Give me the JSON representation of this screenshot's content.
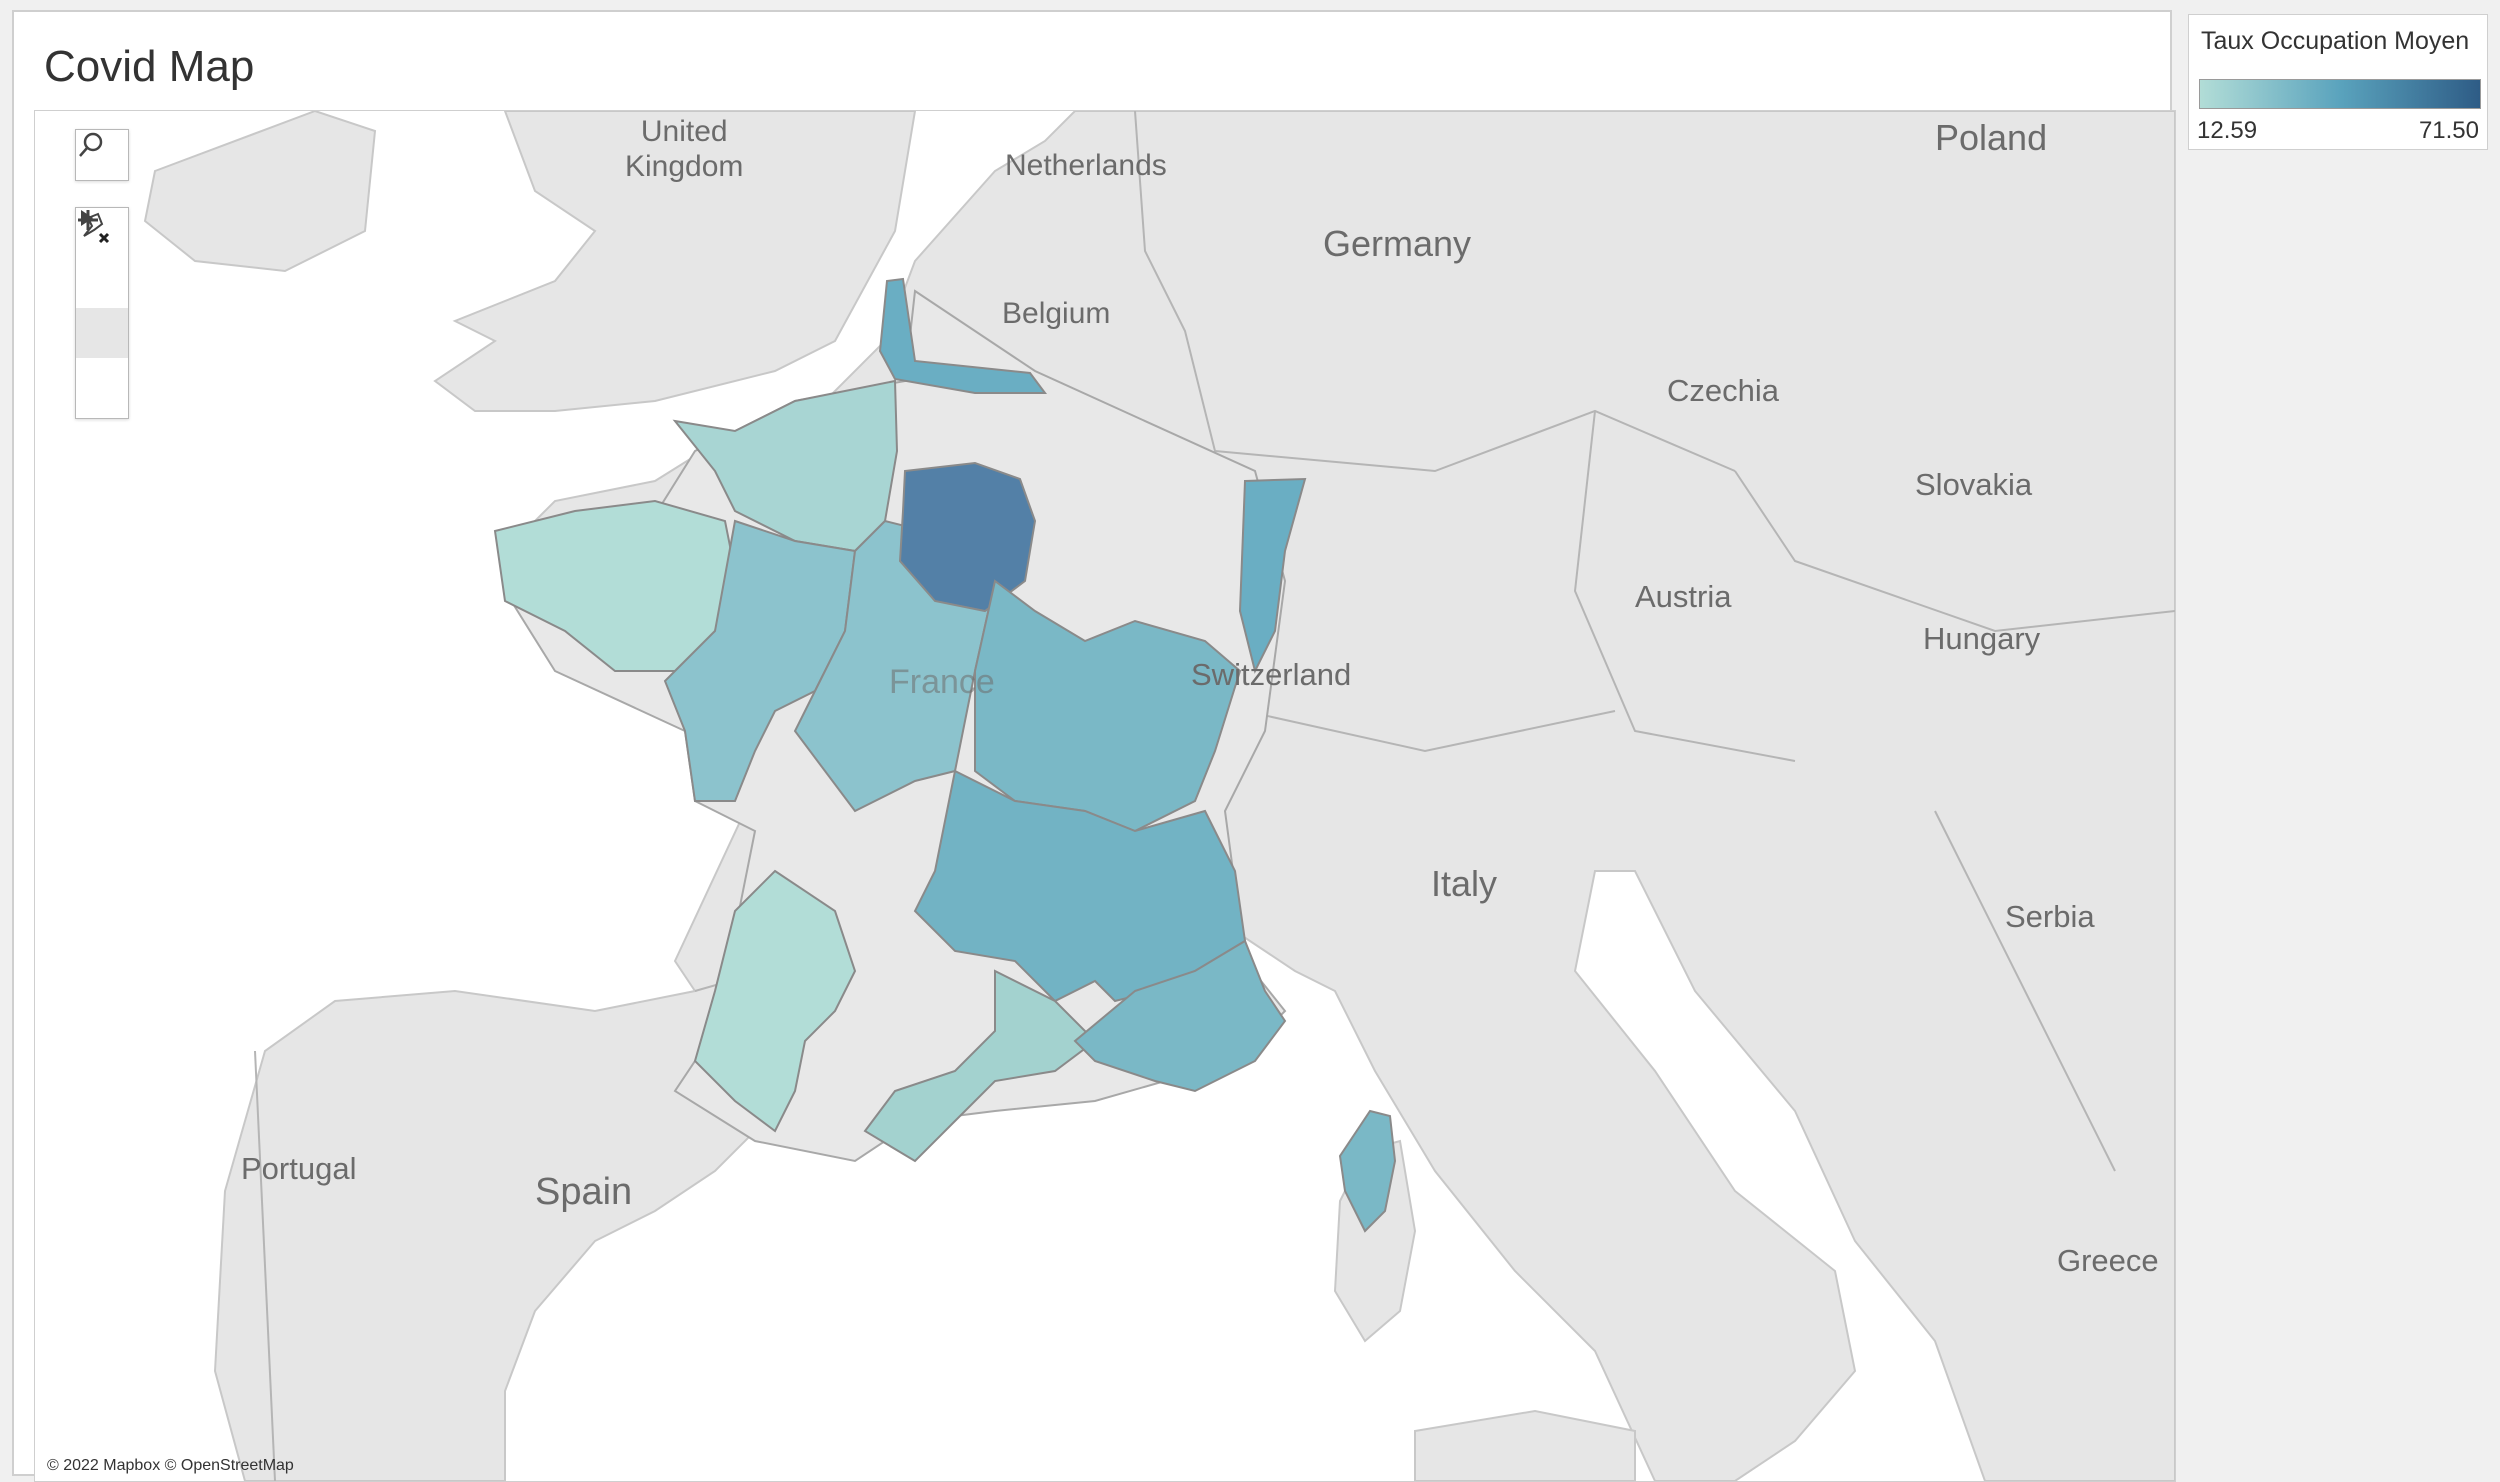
{
  "dashboard": {
    "title": "Covid Map"
  },
  "map_controls": {
    "search_icon": "magnifier",
    "zoom_in_icon": "plus",
    "zoom_out_icon": "minus",
    "pin_icon": "pin-x",
    "expand_icon": "triangle-right"
  },
  "legend": {
    "title": "Taux Occupation Moyen",
    "min": "12.59",
    "max": "71.50",
    "color_low": "#b2ddd7",
    "color_high": "#2e5c86"
  },
  "map_labels": {
    "uk": "United\nKingdom",
    "netherlands": "Netherlands",
    "belgium": "Belgium",
    "germany": "Germany",
    "poland": "Poland",
    "czechia": "Czechia",
    "slovakia": "Slovakia",
    "austria": "Austria",
    "hungary": "Hungary",
    "switzerland": "Switzerland",
    "france": "France",
    "italy": "Italy",
    "serbia": "Serbia",
    "portugal": "Portugal",
    "spain": "Spain",
    "greece": "Greece"
  },
  "region_colors": {
    "hauts_de_france": "#6aaec3",
    "normandie": "#a8d5d3",
    "bretagne": "#b2ddd7",
    "pays_de_la_loire": "#8cc3cd",
    "centre_val_de_loire": "#8cc3cd",
    "ile_de_france": "#5380a7",
    "grand_est_strip": "#6aaec3",
    "bourgogne_franche_comte": "#7ab8c6",
    "auvergne_rhone_alpes": "#72b3c4",
    "nouvelle_aquitaine": "#b2ddd7",
    "occitanie": "#a3d2cf",
    "paca": "#7ab8c6",
    "corse": "#7ab8c6"
  },
  "attribution": "© 2022 Mapbox © OpenStreetMap"
}
